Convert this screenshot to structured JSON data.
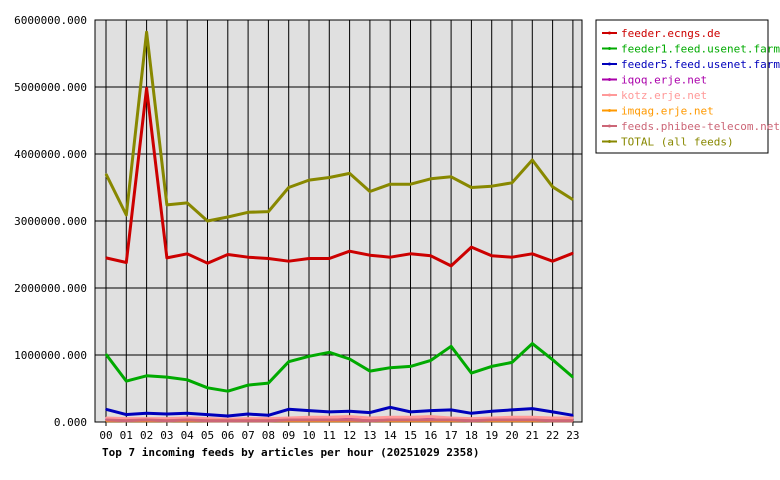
{
  "chart_data": {
    "type": "line",
    "title": "",
    "xlabel": "Top 7 incoming feeds by articles per hour (20251029 2358)",
    "ylabel": "",
    "categories": [
      "00",
      "01",
      "02",
      "03",
      "04",
      "05",
      "06",
      "07",
      "08",
      "09",
      "10",
      "11",
      "12",
      "13",
      "14",
      "15",
      "16",
      "17",
      "18",
      "19",
      "20",
      "21",
      "22",
      "23"
    ],
    "yticks": [
      "0.000",
      "1000000.000",
      "2000000.000",
      "3000000.000",
      "4000000.000",
      "5000000.000",
      "6000000.000"
    ],
    "ylim": [
      0,
      6000000
    ],
    "grid": true,
    "legend_position": "right",
    "series": [
      {
        "name": "feeder.ecngs.de",
        "color": "#cc0000",
        "values": [
          2450000,
          2380000,
          4980000,
          2450000,
          2510000,
          2370000,
          2500000,
          2460000,
          2440000,
          2400000,
          2440000,
          2440000,
          2550000,
          2490000,
          2460000,
          2510000,
          2480000,
          2330000,
          2610000,
          2480000,
          2460000,
          2510000,
          2400000,
          2520000
        ]
      },
      {
        "name": "feeder1.feed.usenet.farm",
        "color": "#00aa00",
        "values": [
          1010000,
          610000,
          690000,
          670000,
          630000,
          510000,
          460000,
          550000,
          580000,
          900000,
          980000,
          1040000,
          940000,
          760000,
          810000,
          830000,
          920000,
          1130000,
          730000,
          830000,
          890000,
          1170000,
          930000,
          670000
        ]
      },
      {
        "name": "feeder5.feed.usenet.farm",
        "color": "#0000bb",
        "values": [
          190000,
          110000,
          130000,
          120000,
          130000,
          110000,
          90000,
          120000,
          100000,
          190000,
          170000,
          150000,
          160000,
          140000,
          220000,
          150000,
          170000,
          180000,
          130000,
          160000,
          180000,
          200000,
          150000,
          100000
        ]
      },
      {
        "name": "iqoq.erje.net",
        "color": "#aa00aa",
        "values": [
          40000,
          30000,
          30000,
          30000,
          30000,
          30000,
          20000,
          30000,
          30000,
          40000,
          40000,
          40000,
          40000,
          30000,
          40000,
          40000,
          40000,
          40000,
          30000,
          40000,
          40000,
          40000,
          30000,
          30000
        ]
      },
      {
        "name": "kotz.erje.net",
        "color": "#ff9999",
        "values": [
          60000,
          50000,
          50000,
          50000,
          60000,
          50000,
          40000,
          50000,
          50000,
          60000,
          70000,
          70000,
          80000,
          60000,
          70000,
          70000,
          80000,
          60000,
          50000,
          60000,
          70000,
          70000,
          60000,
          60000
        ]
      },
      {
        "name": "imqag.erje.net",
        "color": "#ff9900",
        "values": [
          20000,
          20000,
          20000,
          20000,
          20000,
          20000,
          20000,
          20000,
          20000,
          20000,
          20000,
          20000,
          20000,
          20000,
          20000,
          20000,
          20000,
          20000,
          20000,
          20000,
          20000,
          20000,
          20000,
          20000
        ]
      },
      {
        "name": "feeds.phibee-telecom.net",
        "color": "#cc6677",
        "values": [
          30000,
          20000,
          30000,
          20000,
          30000,
          20000,
          20000,
          20000,
          20000,
          30000,
          30000,
          30000,
          30000,
          20000,
          30000,
          30000,
          30000,
          30000,
          20000,
          30000,
          30000,
          30000,
          20000,
          20000
        ]
      },
      {
        "name": "TOTAL (all feeds)",
        "color": "#888800",
        "values": [
          3700000,
          3090000,
          5820000,
          3240000,
          3270000,
          3000000,
          3060000,
          3130000,
          3140000,
          3500000,
          3610000,
          3650000,
          3710000,
          3440000,
          3550000,
          3550000,
          3630000,
          3660000,
          3500000,
          3520000,
          3570000,
          3910000,
          3510000,
          3320000
        ]
      }
    ]
  }
}
